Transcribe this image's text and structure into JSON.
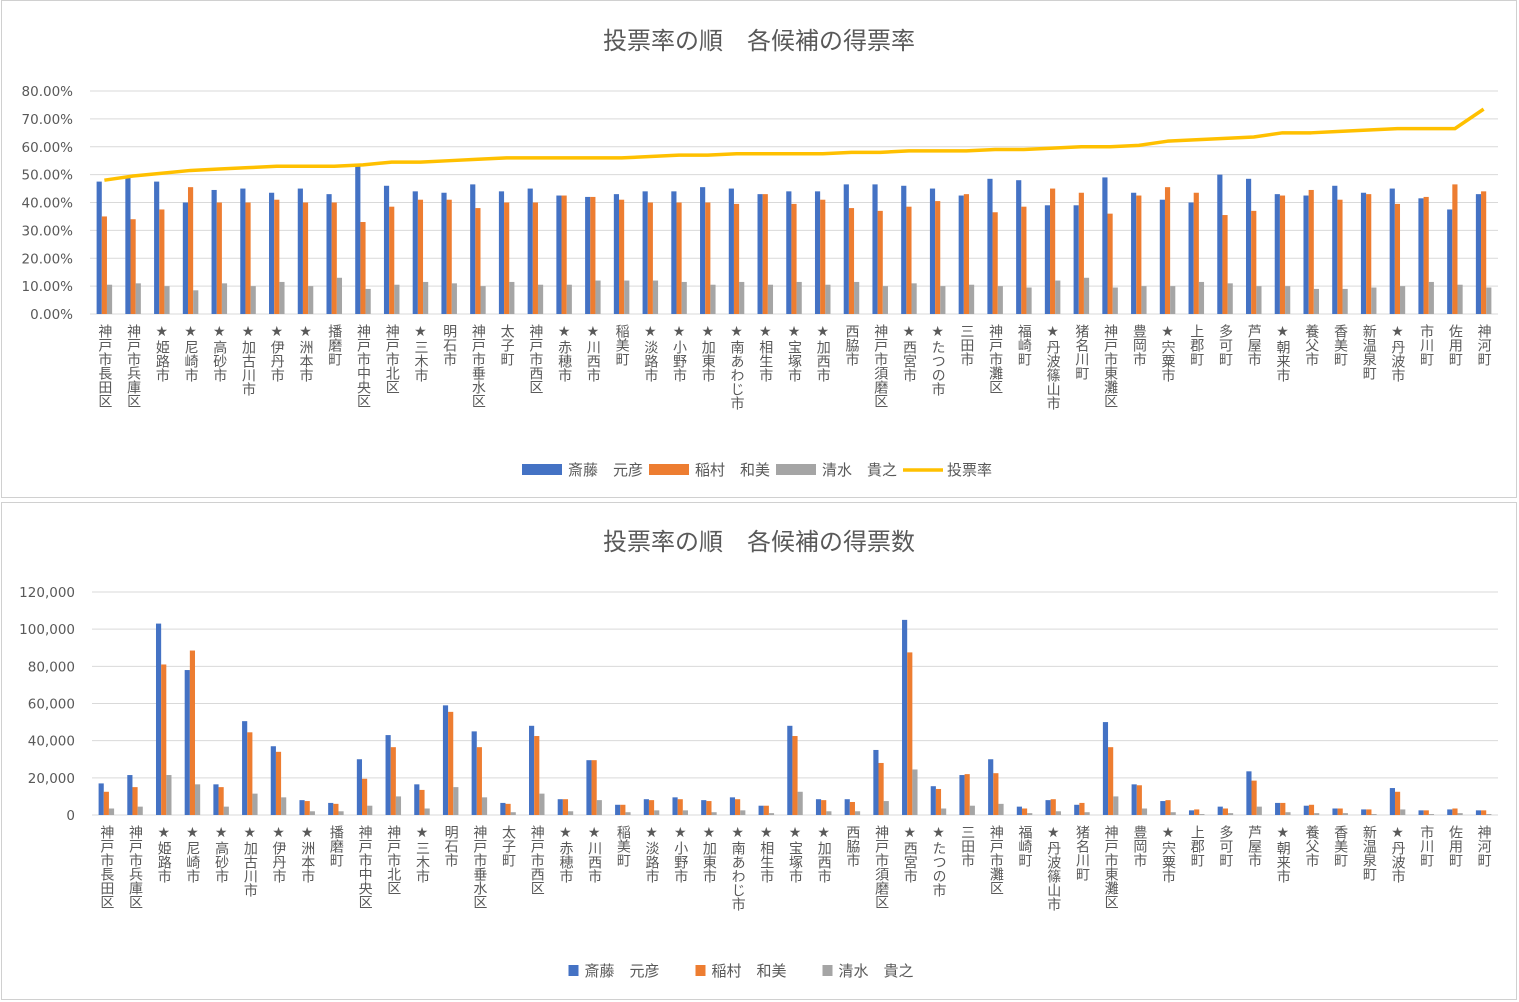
{
  "colors": {
    "saito": "#4472C4",
    "inamura": "#ED7D31",
    "shimizu": "#A5A5A5",
    "turnout": "#FFC000"
  },
  "categories": [
    "神戸市長田区",
    "神戸市兵庫区",
    "★姫路市",
    "★尼崎市",
    "★高砂市",
    "★加古川市",
    "★伊丹市",
    "★洲本市",
    "播磨町",
    "神戸市中央区",
    "神戸市北区",
    "★三木市",
    "明石市",
    "神戸市垂水区",
    "太子町",
    "神戸市西区",
    "★赤穂市",
    "★川西市",
    "稲美町",
    "★淡路市",
    "★小野市",
    "★加東市",
    "★南あわじ市",
    "★相生市",
    "★宝塚市",
    "★加西市",
    "西脇市",
    "神戸市須磨区",
    "★西宮市",
    "★たつの市",
    "三田市",
    "神戸市灘区",
    "福崎町",
    "★丹波篠山市",
    "猪名川町",
    "神戸市東灘区",
    "豊岡市",
    "★宍粟市",
    "上郡町",
    "多可町",
    "芦屋市",
    "★朝来市",
    "養父市",
    "香美町",
    "新温泉町",
    "★丹波市",
    "市川町",
    "佐用町",
    "神河町"
  ],
  "chart_data": [
    {
      "type": "bar+line",
      "title": "投票率の順　各候補の得票率",
      "ylim": [
        0,
        0.8
      ],
      "yticks": [
        "0.00%",
        "10.00%",
        "20.00%",
        "30.00%",
        "40.00%",
        "50.00%",
        "60.00%",
        "70.00%",
        "80.00%"
      ],
      "legend_position": "bottom",
      "series": [
        {
          "name": "斎藤　元彦",
          "type": "bar",
          "values": [
            0.475,
            0.49,
            0.475,
            0.4,
            0.445,
            0.45,
            0.435,
            0.45,
            0.43,
            0.53,
            0.46,
            0.44,
            0.435,
            0.465,
            0.44,
            0.45,
            0.425,
            0.42,
            0.43,
            0.44,
            0.44,
            0.455,
            0.45,
            0.43,
            0.44,
            0.44,
            0.465,
            0.465,
            0.46,
            0.45,
            0.425,
            0.485,
            0.48,
            0.39,
            0.39,
            0.49,
            0.435,
            0.41,
            0.4,
            0.5,
            0.485,
            0.43,
            0.425,
            0.46,
            0.435,
            0.45,
            0.415,
            0.375,
            0.43
          ]
        },
        {
          "name": "稲村　和美",
          "type": "bar",
          "values": [
            0.35,
            0.34,
            0.375,
            0.455,
            0.4,
            0.4,
            0.41,
            0.4,
            0.4,
            0.33,
            0.385,
            0.41,
            0.41,
            0.38,
            0.4,
            0.4,
            0.425,
            0.42,
            0.41,
            0.4,
            0.4,
            0.4,
            0.395,
            0.43,
            0.395,
            0.41,
            0.38,
            0.37,
            0.385,
            0.405,
            0.43,
            0.365,
            0.385,
            0.45,
            0.435,
            0.36,
            0.425,
            0.455,
            0.435,
            0.355,
            0.37,
            0.425,
            0.445,
            0.41,
            0.43,
            0.395,
            0.42,
            0.465,
            0.44
          ]
        },
        {
          "name": "清水　貴之",
          "type": "bar",
          "values": [
            0.105,
            0.11,
            0.1,
            0.085,
            0.11,
            0.1,
            0.115,
            0.1,
            0.13,
            0.09,
            0.105,
            0.115,
            0.11,
            0.1,
            0.115,
            0.105,
            0.105,
            0.12,
            0.12,
            0.12,
            0.115,
            0.105,
            0.115,
            0.105,
            0.115,
            0.105,
            0.115,
            0.1,
            0.11,
            0.1,
            0.105,
            0.1,
            0.095,
            0.12,
            0.13,
            0.095,
            0.1,
            0.1,
            0.115,
            0.11,
            0.1,
            0.1,
            0.09,
            0.09,
            0.095,
            0.1,
            0.115,
            0.105,
            0.095
          ]
        },
        {
          "name": "投票率",
          "type": "line",
          "values": [
            0.48,
            0.495,
            0.505,
            0.515,
            0.52,
            0.525,
            0.53,
            0.53,
            0.53,
            0.535,
            0.545,
            0.545,
            0.55,
            0.555,
            0.56,
            0.56,
            0.56,
            0.56,
            0.56,
            0.565,
            0.57,
            0.57,
            0.575,
            0.575,
            0.575,
            0.575,
            0.58,
            0.58,
            0.585,
            0.585,
            0.585,
            0.59,
            0.59,
            0.595,
            0.6,
            0.6,
            0.605,
            0.62,
            0.625,
            0.63,
            0.635,
            0.65,
            0.65,
            0.655,
            0.66,
            0.665,
            0.665,
            0.665,
            0.735
          ]
        }
      ]
    },
    {
      "type": "bar",
      "title": "投票率の順　各候補の得票数",
      "ylim": [
        0,
        120000
      ],
      "yticks": [
        "0",
        "20,000",
        "40,000",
        "60,000",
        "80,000",
        "100,000",
        "120,000"
      ],
      "legend_position": "bottom",
      "series": [
        {
          "name": "斎藤　元彦",
          "values": [
            17000,
            21500,
            103000,
            78000,
            16500,
            50500,
            37000,
            8000,
            6500,
            30000,
            43000,
            16500,
            59000,
            45000,
            6500,
            48000,
            8500,
            29500,
            5500,
            8500,
            9500,
            8000,
            9500,
            5000,
            48000,
            8500,
            8500,
            35000,
            105000,
            15500,
            21500,
            30000,
            4500,
            8000,
            5500,
            50000,
            16500,
            7500,
            2500,
            4500,
            23500,
            6500,
            5000,
            3500,
            3000,
            14500,
            2500,
            3000,
            2500
          ]
        },
        {
          "name": "稲村　和美",
          "values": [
            12500,
            15000,
            81000,
            88500,
            15000,
            44500,
            34000,
            7500,
            6000,
            19500,
            36500,
            13500,
            55500,
            36500,
            6000,
            42500,
            8500,
            29500,
            5500,
            8000,
            8500,
            7500,
            8500,
            5000,
            42500,
            8000,
            7000,
            28000,
            87500,
            14000,
            22000,
            22500,
            3500,
            8500,
            6500,
            36500,
            16000,
            8000,
            3000,
            3500,
            18500,
            6500,
            5500,
            3500,
            3000,
            12500,
            2500,
            3500,
            2500
          ]
        },
        {
          "name": "清水　貴之",
          "values": [
            3500,
            4500,
            21500,
            16500,
            4500,
            11500,
            9500,
            2000,
            2000,
            5000,
            10000,
            3500,
            15000,
            9500,
            1500,
            11500,
            2000,
            8000,
            1500,
            2500,
            2500,
            1500,
            2500,
            1000,
            12500,
            2000,
            2000,
            7500,
            24500,
            3500,
            5000,
            6000,
            1000,
            2000,
            1500,
            10000,
            3500,
            1500,
            500,
            1000,
            4500,
            1500,
            1000,
            1000,
            500,
            3000,
            500,
            1000,
            500
          ]
        }
      ]
    }
  ]
}
